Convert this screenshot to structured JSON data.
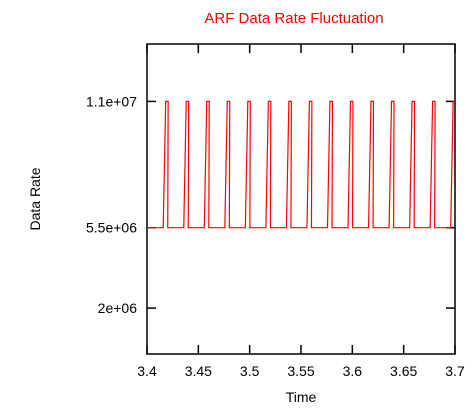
{
  "colors": {
    "series": "#ff0000",
    "title": "#ff0000",
    "axes": "#000000",
    "background": "#ffffff"
  },
  "chart_data": {
    "type": "line",
    "title": "ARF Data Rate Fluctuation",
    "xlabel": "Time",
    "ylabel": "Data Rate",
    "xlim": [
      3.4,
      3.7
    ],
    "ylim": [
      0,
      13500000
    ],
    "x_ticks": [
      3.4,
      3.45,
      3.5,
      3.55,
      3.6,
      3.65,
      3.7
    ],
    "x_tick_labels": [
      "3.4",
      "3.45",
      "3.5",
      "3.55",
      "3.6",
      "3.65",
      "3.7"
    ],
    "y_ticks": [
      2000000,
      5500000,
      11000000
    ],
    "y_tick_labels": [
      "2e+06",
      "5.5e+06",
      "1.1e+07"
    ],
    "grid": false,
    "legend": "none",
    "series": [
      {
        "color": "#ff0000",
        "x": [
          3.4,
          3.4158,
          3.4182,
          3.4206,
          3.4202,
          3.4358,
          3.4382,
          3.4406,
          3.4402,
          3.4558,
          3.4582,
          3.4606,
          3.4602,
          3.4758,
          3.4782,
          3.4806,
          3.4802,
          3.4958,
          3.4982,
          3.5006,
          3.5002,
          3.5158,
          3.5182,
          3.5206,
          3.5202,
          3.5358,
          3.5382,
          3.5406,
          3.5402,
          3.5558,
          3.5582,
          3.5606,
          3.5602,
          3.5758,
          3.5782,
          3.5806,
          3.5802,
          3.5958,
          3.5982,
          3.6006,
          3.6002,
          3.6158,
          3.6182,
          3.6206,
          3.6202,
          3.6358,
          3.6382,
          3.6406,
          3.6402,
          3.6558,
          3.6582,
          3.6606,
          3.6602,
          3.6758,
          3.6782,
          3.6806,
          3.6802,
          3.6958,
          3.6982,
          3.7
        ],
        "y": [
          5500000,
          5500000,
          11000000,
          11000000,
          5500000,
          5500000,
          11000000,
          11000000,
          5500000,
          5500000,
          11000000,
          11000000,
          5500000,
          5500000,
          11000000,
          11000000,
          5500000,
          5500000,
          11000000,
          11000000,
          5500000,
          5500000,
          11000000,
          11000000,
          5500000,
          5500000,
          11000000,
          11000000,
          5500000,
          5500000,
          11000000,
          11000000,
          5500000,
          5500000,
          11000000,
          11000000,
          5500000,
          5500000,
          11000000,
          11000000,
          5500000,
          5500000,
          11000000,
          11000000,
          5500000,
          5500000,
          11000000,
          11000000,
          5500000,
          5500000,
          11000000,
          11000000,
          5500000,
          5500000,
          11000000,
          11000000,
          5500000,
          5500000,
          11000000,
          11000000
        ]
      }
    ]
  }
}
